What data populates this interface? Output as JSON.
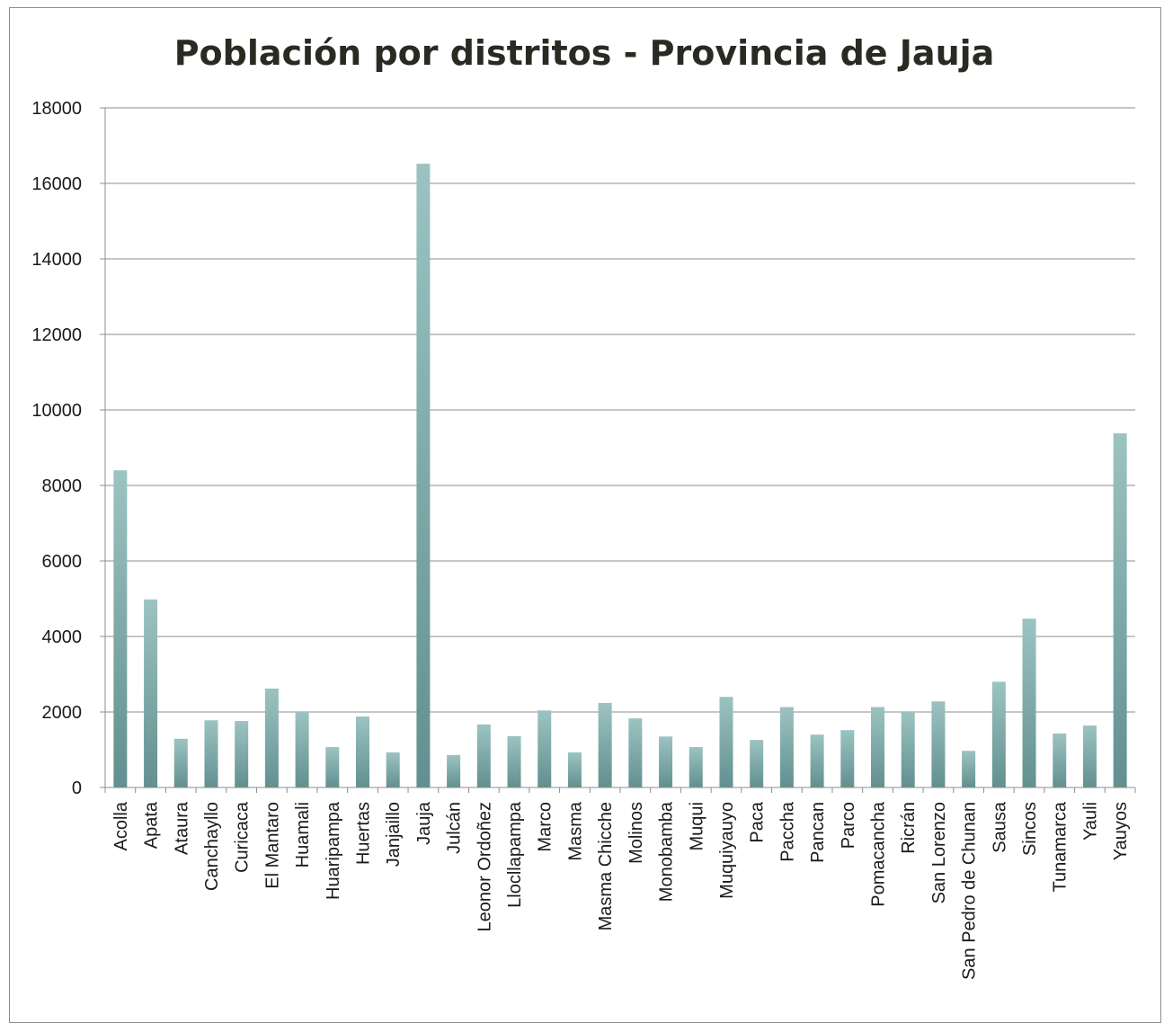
{
  "chart_data": {
    "type": "bar",
    "title": "Población por distritos - Provincia de Jauja",
    "xlabel": "",
    "ylabel": "",
    "ylim": [
      0,
      18000
    ],
    "yticks": [
      0,
      2000,
      4000,
      6000,
      8000,
      10000,
      12000,
      14000,
      16000,
      18000
    ],
    "grid": true,
    "legend": "none",
    "bar_color": "#7fa9a8",
    "categories": [
      "Acolla",
      "Apata",
      "Ataura",
      "Canchayllo",
      "Curicaca",
      "El Mantaro",
      "Huamali",
      "Huaripampa",
      "Huertas",
      "Janjaillo",
      "Jauja",
      "Julcán",
      "Leonor Ordoñez",
      "Llocllapampa",
      "Marco",
      "Masma",
      "Masma Chicche",
      "Molinos",
      "Monobamba",
      "Muqui",
      "Muquiyauyo",
      "Paca",
      "Paccha",
      "Pancan",
      "Parco",
      "Pomacancha",
      "Ricrán",
      "San Lorenzo",
      "San Pedro de Chunan",
      "Sausa",
      "Sincos",
      "Tunamarca",
      "Yauli",
      "Yauyos"
    ],
    "values": [
      8400,
      4980,
      1290,
      1780,
      1760,
      2620,
      2000,
      1070,
      1880,
      930,
      16520,
      860,
      1670,
      1360,
      2040,
      930,
      2240,
      1830,
      1350,
      1070,
      2400,
      1260,
      2130,
      1400,
      1520,
      2130,
      2000,
      2280,
      970,
      2800,
      4470,
      1430,
      1640,
      9380
    ]
  }
}
